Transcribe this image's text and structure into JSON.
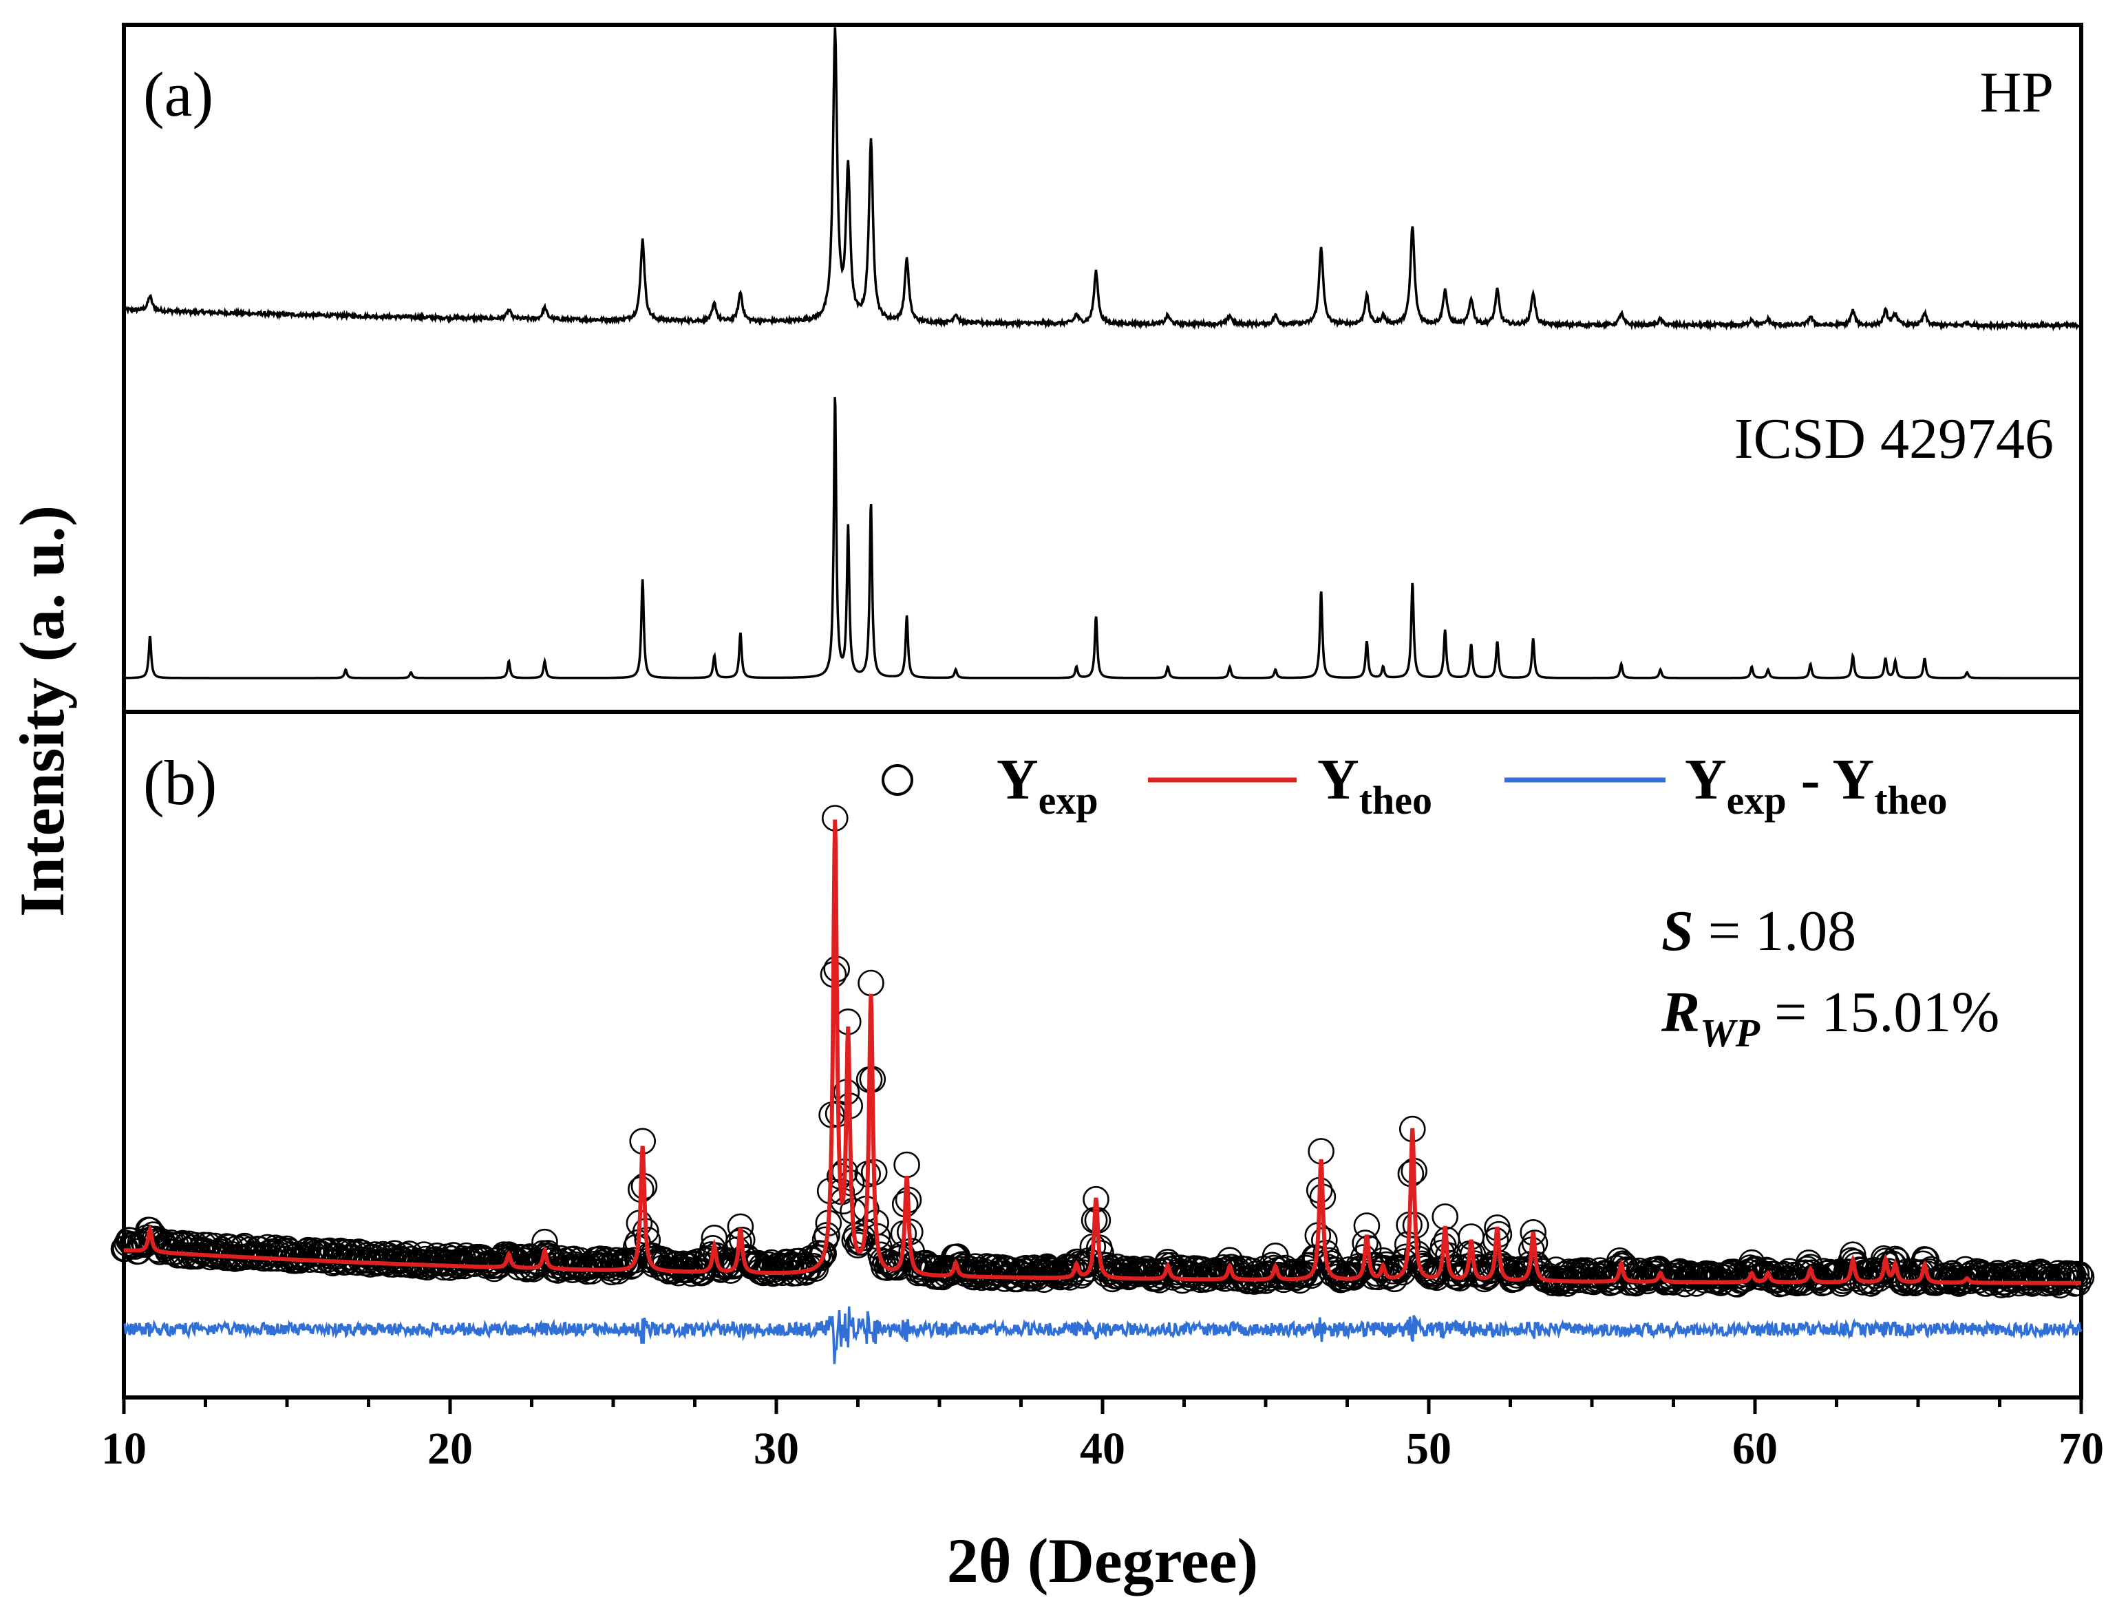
{
  "figure": {
    "x_axis_label": "2θ (Degree)",
    "y_axis_label": "Intensity (a. u.)",
    "x_ticks": [
      "10",
      "20",
      "30",
      "40",
      "50",
      "60",
      "70"
    ],
    "panel_a": {
      "tag": "(a)",
      "label_hp": "HP",
      "label_ref": "ICSD 429746"
    },
    "panel_b": {
      "tag": "(b)",
      "legend": {
        "exp_main": "Y",
        "exp_sub": "exp",
        "theo_main": "Y",
        "theo_sub": "theo",
        "diff_y1": "Y",
        "diff_sub1": "exp",
        "diff_sep": " - ",
        "diff_y2": "Y",
        "diff_sub2": "theo"
      },
      "stat_s_symbol": "S",
      "stat_s_value": " = 1.08",
      "stat_r_symbol": "R",
      "stat_r_sub": "WP",
      "stat_r_value": " = 15.01%"
    }
  },
  "colors": {
    "exp": "#000000",
    "theo": "#e02020",
    "diff": "#2f6fd6"
  },
  "chart_data": {
    "type": "line",
    "xlabel": "2θ (Degree)",
    "ylabel": "Intensity (a. u.)",
    "xlim": [
      10,
      70
    ],
    "x_major_ticks": [
      10,
      20,
      30,
      40,
      50,
      60,
      70
    ],
    "x_minor_step": 2.5,
    "peaks": [
      {
        "pos": 10.8,
        "hp": 0.05,
        "ref": 0.15
      },
      {
        "pos": 16.8,
        "hp": 0.0,
        "ref": 0.03
      },
      {
        "pos": 18.8,
        "hp": 0.0,
        "ref": 0.02
      },
      {
        "pos": 21.8,
        "hp": 0.03,
        "ref": 0.06
      },
      {
        "pos": 22.9,
        "hp": 0.04,
        "ref": 0.06
      },
      {
        "pos": 25.9,
        "hp": 0.28,
        "ref": 0.35
      },
      {
        "pos": 28.1,
        "hp": 0.06,
        "ref": 0.08
      },
      {
        "pos": 28.9,
        "hp": 0.1,
        "ref": 0.16
      },
      {
        "pos": 31.8,
        "hp": 1.0,
        "ref": 1.0
      },
      {
        "pos": 32.2,
        "hp": 0.52,
        "ref": 0.53
      },
      {
        "pos": 32.9,
        "hp": 0.62,
        "ref": 0.62
      },
      {
        "pos": 34.0,
        "hp": 0.22,
        "ref": 0.22
      },
      {
        "pos": 35.5,
        "hp": 0.03,
        "ref": 0.03
      },
      {
        "pos": 39.2,
        "hp": 0.03,
        "ref": 0.04
      },
      {
        "pos": 39.8,
        "hp": 0.18,
        "ref": 0.22
      },
      {
        "pos": 42.0,
        "hp": 0.03,
        "ref": 0.04
      },
      {
        "pos": 43.9,
        "hp": 0.03,
        "ref": 0.04
      },
      {
        "pos": 45.3,
        "hp": 0.03,
        "ref": 0.03
      },
      {
        "pos": 46.7,
        "hp": 0.27,
        "ref": 0.31
      },
      {
        "pos": 48.1,
        "hp": 0.1,
        "ref": 0.13
      },
      {
        "pos": 48.6,
        "hp": 0.03,
        "ref": 0.04
      },
      {
        "pos": 49.5,
        "hp": 0.34,
        "ref": 0.34
      },
      {
        "pos": 50.5,
        "hp": 0.12,
        "ref": 0.17
      },
      {
        "pos": 51.3,
        "hp": 0.09,
        "ref": 0.12
      },
      {
        "pos": 52.1,
        "hp": 0.12,
        "ref": 0.13
      },
      {
        "pos": 53.2,
        "hp": 0.11,
        "ref": 0.14
      },
      {
        "pos": 55.9,
        "hp": 0.04,
        "ref": 0.05
      },
      {
        "pos": 57.1,
        "hp": 0.02,
        "ref": 0.03
      },
      {
        "pos": 59.9,
        "hp": 0.02,
        "ref": 0.04
      },
      {
        "pos": 60.4,
        "hp": 0.02,
        "ref": 0.03
      },
      {
        "pos": 61.7,
        "hp": 0.03,
        "ref": 0.05
      },
      {
        "pos": 63.0,
        "hp": 0.05,
        "ref": 0.08
      },
      {
        "pos": 64.0,
        "hp": 0.05,
        "ref": 0.07
      },
      {
        "pos": 64.3,
        "hp": 0.04,
        "ref": 0.06
      },
      {
        "pos": 65.2,
        "hp": 0.04,
        "ref": 0.07
      },
      {
        "pos": 66.5,
        "hp": 0.01,
        "ref": 0.02
      }
    ],
    "series": [
      {
        "name": "HP",
        "panel": "a",
        "style": "line"
      },
      {
        "name": "ICSD 429746",
        "panel": "a",
        "style": "stick-pattern"
      },
      {
        "name": "Yexp",
        "panel": "b",
        "style": "open-circles"
      },
      {
        "name": "Ytheo",
        "panel": "b",
        "style": "line"
      },
      {
        "name": "Yexp - Ytheo",
        "panel": "b",
        "style": "line"
      }
    ],
    "refinement": {
      "S": 1.08,
      "R_WP_percent": 15.01
    }
  }
}
